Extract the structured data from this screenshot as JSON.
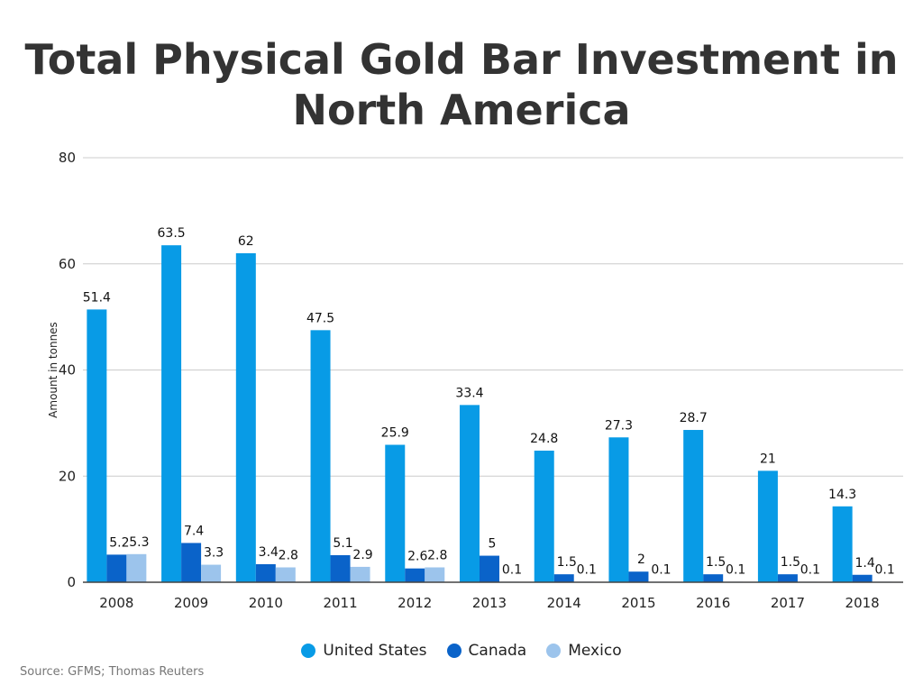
{
  "chart_data": {
    "type": "bar",
    "title": "Total Physical Gold Bar Investment in North America",
    "ylabel": "Amount in tonnes",
    "xlabel": "",
    "ylim": [
      0,
      80
    ],
    "yticks": [
      0,
      20,
      40,
      60,
      80
    ],
    "grid": true,
    "legend_position": "bottom",
    "categories": [
      "2008",
      "2009",
      "2010",
      "2011",
      "2012",
      "2013",
      "2014",
      "2015",
      "2016",
      "2017",
      "2018"
    ],
    "series": [
      {
        "name": "United States",
        "color": "#089be6",
        "values": [
          51.4,
          63.5,
          62,
          47.5,
          25.9,
          33.4,
          24.8,
          27.3,
          28.7,
          21,
          14.3
        ]
      },
      {
        "name": "Canada",
        "color": "#0a63c9",
        "values": [
          5.2,
          7.4,
          3.4,
          5.1,
          2.6,
          5,
          1.5,
          2,
          1.5,
          1.5,
          1.4
        ]
      },
      {
        "name": "Mexico",
        "color": "#9cc4ec",
        "values": [
          5.3,
          3.3,
          2.8,
          2.9,
          2.8,
          0.1,
          0.1,
          0.1,
          0.1,
          0.1,
          0.1
        ]
      }
    ],
    "source": "Source: GFMS; Thomas Reuters"
  }
}
